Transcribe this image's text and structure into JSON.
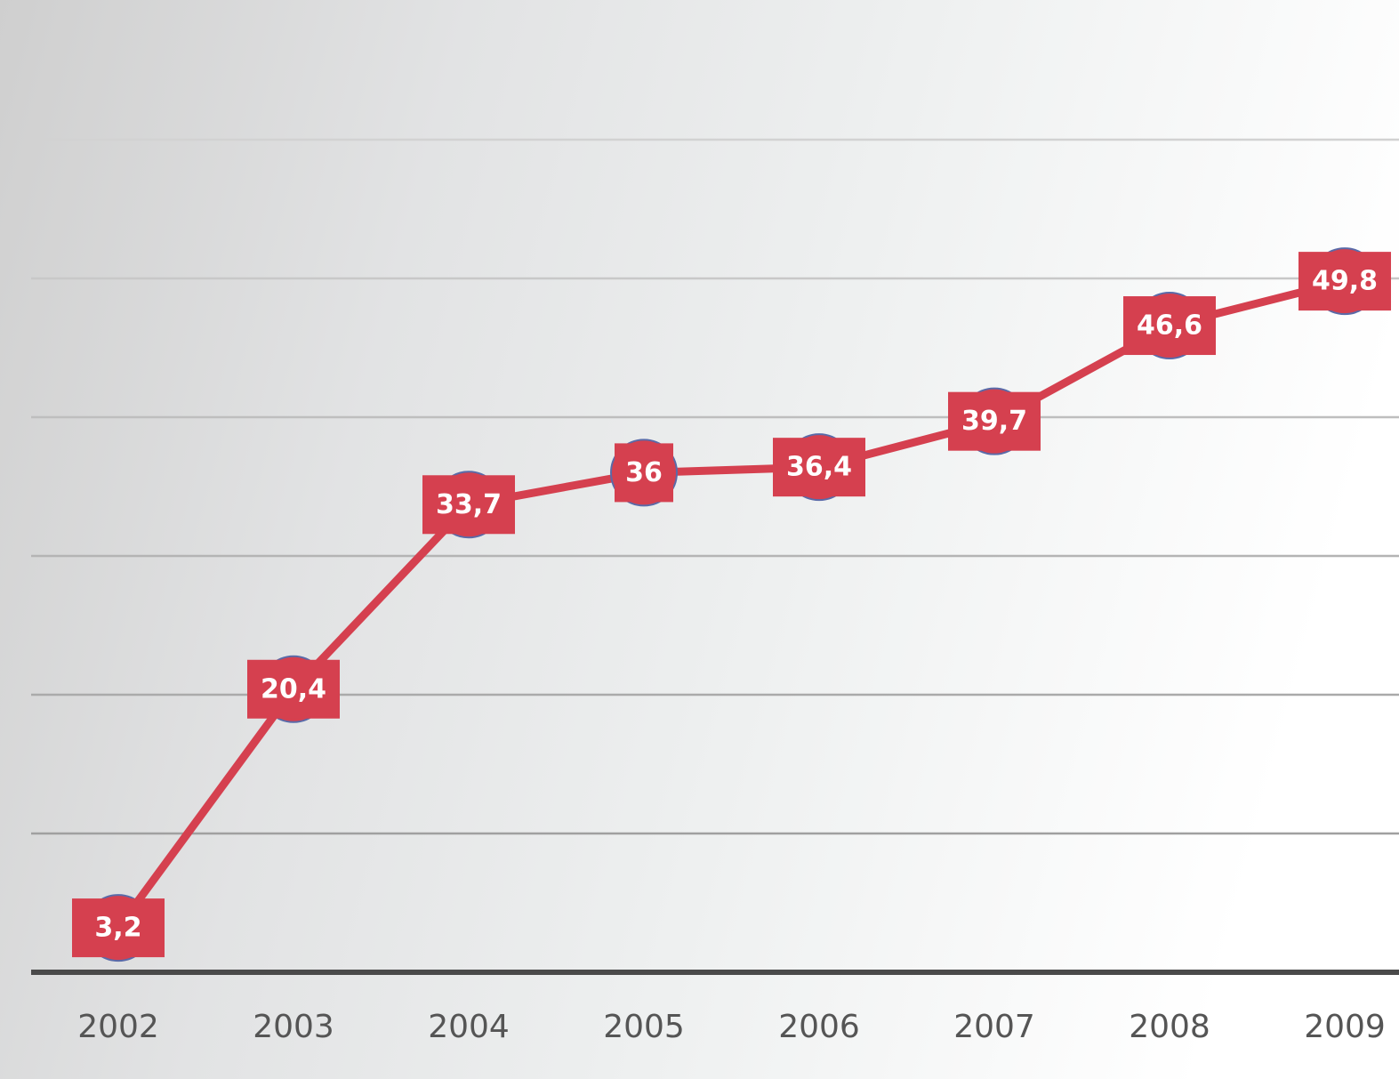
{
  "chart_data": {
    "type": "line",
    "categories": [
      "2002",
      "2003",
      "2004",
      "2005",
      "2006",
      "2007",
      "2008",
      "2009"
    ],
    "series": [
      {
        "values": [
          3.2,
          20.4,
          33.7,
          36,
          36.4,
          39.7,
          46.6,
          49.8
        ],
        "labels": [
          "3,2",
          "20,4",
          "33,7",
          "36",
          "36,4",
          "39,7",
          "46,6",
          "49,8"
        ],
        "color": "#d5404f"
      }
    ],
    "ylim": [
      0,
      60
    ],
    "grid": true,
    "legend": "none"
  }
}
